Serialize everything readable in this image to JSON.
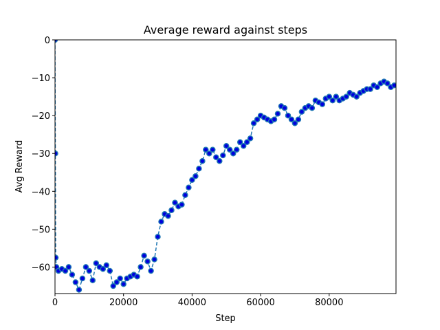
{
  "chart_data": {
    "type": "scatter",
    "title": "Average reward against steps",
    "xlabel": "Step",
    "ylabel": "Avg Reward",
    "xlim": [
      0,
      99500
    ],
    "ylim": [
      -67,
      0
    ],
    "xticks": [
      0,
      20000,
      40000,
      60000,
      80000
    ],
    "xtick_labels": [
      "0",
      "20000",
      "40000",
      "60000",
      "80000"
    ],
    "yticks": [
      0,
      -10,
      -20,
      -30,
      -40,
      -50,
      -60
    ],
    "ytick_labels": [
      "0",
      "−10",
      "−20",
      "−30",
      "−40",
      "−50",
      "−60"
    ],
    "grid": false,
    "legend": "none",
    "colors": {
      "marker_fill": "#0000dd",
      "marker_edge": "#1f77b4",
      "line": "#1f77b4"
    },
    "series": [
      {
        "x": [
          0,
          100,
          200,
          400,
          1000,
          2000,
          3000,
          4000,
          5000,
          6000,
          7000,
          8000,
          9000,
          10000,
          11000,
          12000,
          13000,
          14000,
          15000,
          16000,
          17000,
          18000,
          19000,
          20000,
          21000,
          22000,
          23000,
          24000,
          25000,
          26000,
          27000,
          28000,
          29000,
          30000,
          31000,
          32000,
          33000,
          34000,
          35000,
          36000,
          37000,
          38000,
          39000,
          40000,
          41000,
          42000,
          43000,
          44000,
          45000,
          46000,
          47000,
          48000,
          49000,
          50000,
          51000,
          52000,
          53000,
          54000,
          55000,
          56000,
          57000,
          58000,
          59000,
          60000,
          61000,
          62000,
          63000,
          64000,
          65000,
          66000,
          67000,
          68000,
          69000,
          70000,
          71000,
          72000,
          73000,
          74000,
          75000,
          76000,
          77000,
          78000,
          79000,
          80000,
          81000,
          82000,
          83000,
          84000,
          85000,
          86000,
          87000,
          88000,
          89000,
          90000,
          91000,
          92000,
          93000,
          94000,
          95000,
          96000,
          97000,
          98000,
          99000
        ],
        "y": [
          0,
          -30,
          -57.5,
          -60,
          -61,
          -60.5,
          -61,
          -60,
          -62,
          -64,
          -66,
          -63,
          -60,
          -61,
          -63.5,
          -59,
          -60,
          -60.5,
          -59.5,
          -61,
          -65,
          -64,
          -63,
          -64.5,
          -63,
          -62.5,
          -62,
          -62.5,
          -60,
          -57,
          -58.5,
          -61,
          -58,
          -52,
          -48,
          -46,
          -46.5,
          -45,
          -43,
          -44,
          -43.5,
          -41,
          -39,
          -37,
          -36,
          -34,
          -32,
          -29,
          -30,
          -29,
          -31,
          -32,
          -30.5,
          -28,
          -29,
          -30,
          -29,
          -27,
          -28,
          -27,
          -26,
          -22,
          -21,
          -20,
          -20.5,
          -21,
          -21.5,
          -21,
          -19.5,
          -17.5,
          -18,
          -20,
          -21,
          -22,
          -21,
          -19,
          -18,
          -17.5,
          -18,
          -16,
          -16.5,
          -17,
          -15.5,
          -15,
          -16,
          -15,
          -16,
          -15.5,
          -15,
          -14,
          -14.5,
          -15,
          -14,
          -13.5,
          -13,
          -13,
          -12,
          -12.5,
          -11.5,
          -11,
          -11.5,
          -12.5,
          -12
        ]
      }
    ]
  }
}
